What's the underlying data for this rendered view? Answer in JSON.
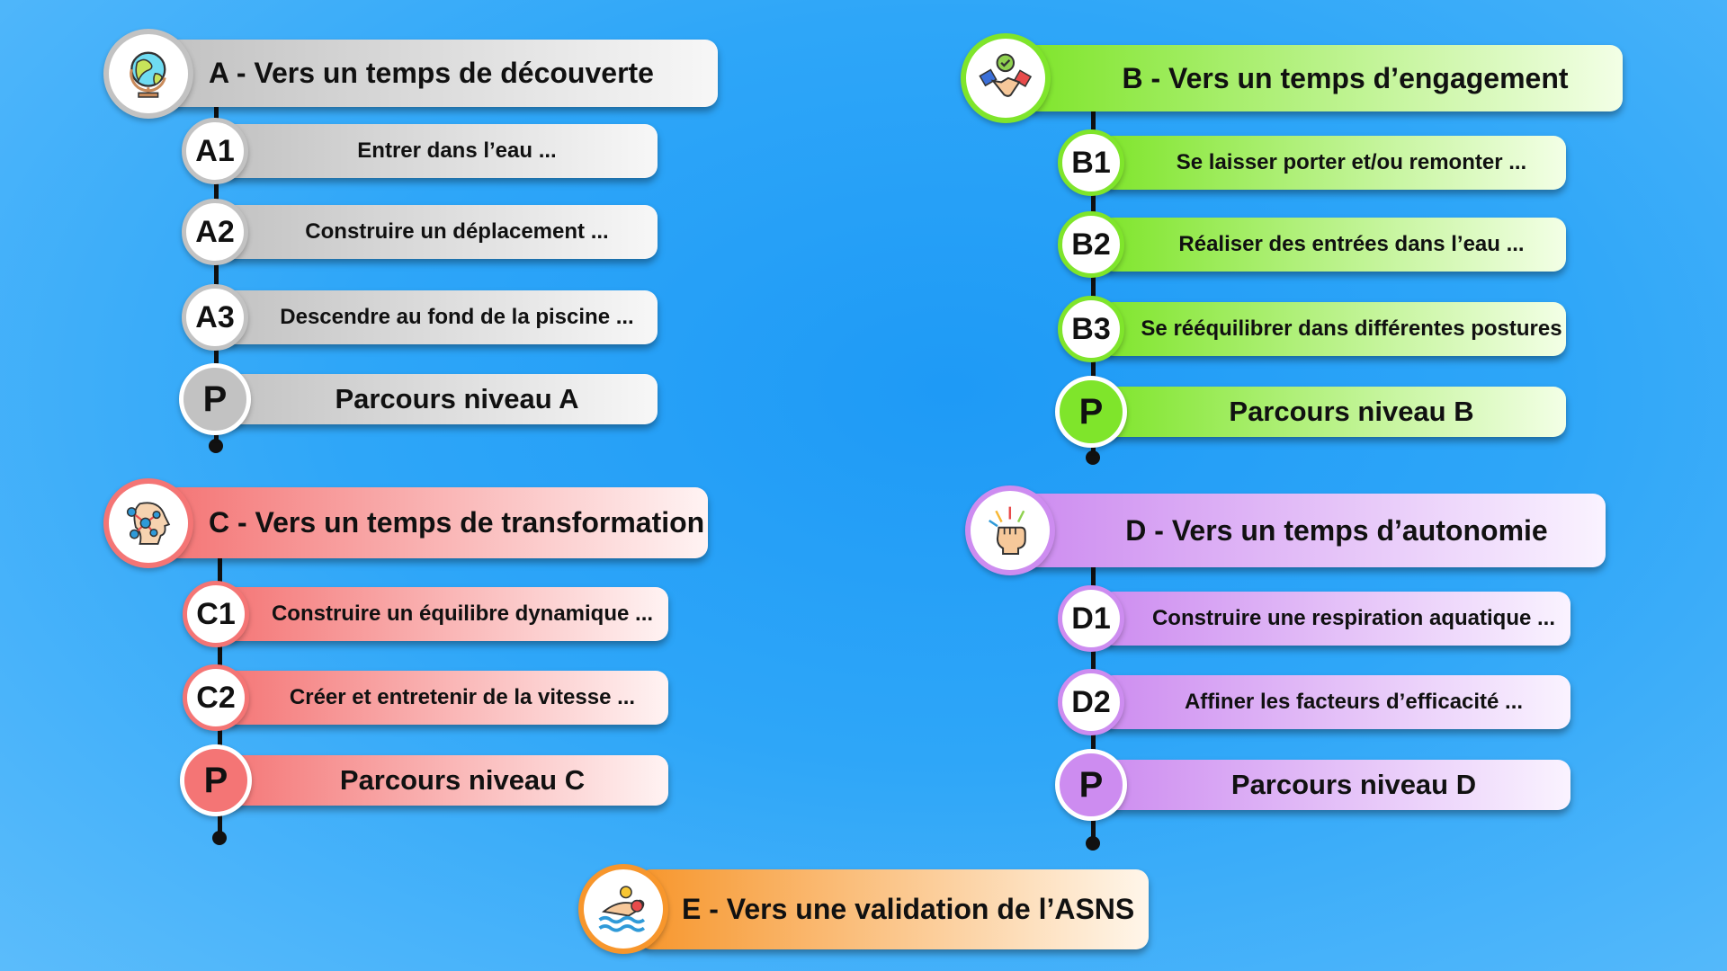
{
  "colors": {
    "background": "#2ea6f8",
    "A": {
      "main": "#c2c2c2",
      "light": "#f7f7f7"
    },
    "B": {
      "main": "#7fe52b",
      "light": "#f3ffe6"
    },
    "C": {
      "main": "#f47575",
      "light": "#fff3f3"
    },
    "D": {
      "main": "#cd8cf0",
      "light": "#faf3ff"
    },
    "E": {
      "main": "#f7962c",
      "light": "#fff6ea"
    }
  },
  "sections": [
    {
      "id": "A",
      "icon": "globe-icon",
      "title": "A - Vers un temps de découverte",
      "items": [
        {
          "code": "A1",
          "label": "Entrer dans l’eau ..."
        },
        {
          "code": "A2",
          "label": "Construire un déplacement ..."
        },
        {
          "code": "A3",
          "label": "Descendre au fond de la piscine ..."
        },
        {
          "code": "P",
          "label": "Parcours niveau A"
        }
      ]
    },
    {
      "id": "B",
      "icon": "handshake-icon",
      "title": "B - Vers un temps d’engagement",
      "items": [
        {
          "code": "B1",
          "label": "Se laisser porter et/ou remonter ..."
        },
        {
          "code": "B2",
          "label": "Réaliser des entrées dans l’eau ..."
        },
        {
          "code": "B3",
          "label": "Se rééquilibrer dans différentes postures"
        },
        {
          "code": "P",
          "label": "Parcours niveau B"
        }
      ]
    },
    {
      "id": "C",
      "icon": "brain-network-icon",
      "title": "C - Vers un temps de transformation",
      "items": [
        {
          "code": "C1",
          "label": "Construire un équilibre dynamique ..."
        },
        {
          "code": "C2",
          "label": "Créer et entretenir de la vitesse ..."
        },
        {
          "code": "P",
          "label": "Parcours niveau C"
        }
      ]
    },
    {
      "id": "D",
      "icon": "raised-fist-icon",
      "title": "D - Vers un temps d’autonomie",
      "items": [
        {
          "code": "D1",
          "label": "Construire une respiration aquatique ..."
        },
        {
          "code": "D2",
          "label": "Affiner les facteurs d’efficacité ..."
        },
        {
          "code": "P",
          "label": "Parcours niveau D"
        }
      ]
    },
    {
      "id": "E",
      "icon": "swimmer-icon",
      "title": "E - Vers une validation de l’ASNS",
      "items": []
    }
  ]
}
